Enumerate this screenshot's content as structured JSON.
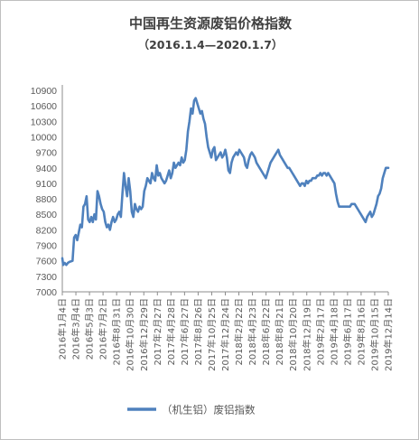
{
  "chart_data": {
    "type": "line",
    "title": "中国再生资源废铝价格指数",
    "subtitle": "（2016.1.4—2020.1.7）",
    "ylim": [
      7000,
      10900
    ],
    "ytick_step": 300,
    "yticks": [
      "7000",
      "7300",
      "7600",
      "7900",
      "8200",
      "8500",
      "8800",
      "9100",
      "9400",
      "9700",
      "10000",
      "10300",
      "10600",
      "10900"
    ],
    "x_tick_labels": [
      "2016年1月4日",
      "2016年3月4日",
      "2016年5月3日",
      "2016年7月2日",
      "2016年8月31日",
      "2016年10月30日",
      "2016年12月29日",
      "2017年2月27日",
      "2017年4月28日",
      "2017年6月27日",
      "2017年8月26日",
      "2017年10月25日",
      "2017年12月24日",
      "2018年2月22日",
      "2018年4月23日",
      "2018年6月22日",
      "2018年8月21日",
      "2018年10月20日",
      "2018年12月19日",
      "2019年2月17日",
      "2019年4月18日",
      "2019年6月17日",
      "2019年8月16日",
      "2019年10月15日",
      "2019年12月14日"
    ],
    "legend_position": "bottom",
    "grid": false,
    "colors": {
      "series": "#4f81bd",
      "axis": "#8c8c8c",
      "text": "#595959"
    },
    "series": [
      {
        "name": "（机生铝）废铝指数",
        "points": [
          [
            "2016-01-04",
            7650
          ],
          [
            "2016-01-08",
            7520
          ],
          [
            "2016-01-15",
            7560
          ],
          [
            "2016-01-22",
            7520
          ],
          [
            "2016-01-29",
            7560
          ],
          [
            "2016-02-05",
            7580
          ],
          [
            "2016-02-19",
            7600
          ],
          [
            "2016-02-26",
            8050
          ],
          [
            "2016-03-04",
            8100
          ],
          [
            "2016-03-11",
            8000
          ],
          [
            "2016-03-18",
            8150
          ],
          [
            "2016-03-25",
            8300
          ],
          [
            "2016-04-01",
            8250
          ],
          [
            "2016-04-08",
            8650
          ],
          [
            "2016-04-15",
            8700
          ],
          [
            "2016-04-22",
            8850
          ],
          [
            "2016-04-29",
            8400
          ],
          [
            "2016-05-06",
            8350
          ],
          [
            "2016-05-13",
            8450
          ],
          [
            "2016-05-20",
            8350
          ],
          [
            "2016-05-27",
            8500
          ],
          [
            "2016-06-03",
            8400
          ],
          [
            "2016-06-10",
            8950
          ],
          [
            "2016-06-17",
            8850
          ],
          [
            "2016-06-24",
            8700
          ],
          [
            "2016-07-01",
            8600
          ],
          [
            "2016-07-08",
            8550
          ],
          [
            "2016-07-15",
            8350
          ],
          [
            "2016-07-22",
            8250
          ],
          [
            "2016-07-29",
            8300
          ],
          [
            "2016-08-05",
            8200
          ],
          [
            "2016-08-12",
            8350
          ],
          [
            "2016-08-19",
            8450
          ],
          [
            "2016-08-26",
            8350
          ],
          [
            "2016-09-02",
            8400
          ],
          [
            "2016-09-09",
            8500
          ],
          [
            "2016-09-16",
            8550
          ],
          [
            "2016-09-23",
            8450
          ],
          [
            "2016-09-30",
            8900
          ],
          [
            "2016-10-07",
            9300
          ],
          [
            "2016-10-14",
            9050
          ],
          [
            "2016-10-21",
            8850
          ],
          [
            "2016-10-28",
            9200
          ],
          [
            "2016-11-04",
            8950
          ],
          [
            "2016-11-11",
            8550
          ],
          [
            "2016-11-18",
            8450
          ],
          [
            "2016-11-25",
            8700
          ],
          [
            "2016-12-02",
            8600
          ],
          [
            "2016-12-09",
            8550
          ],
          [
            "2016-12-16",
            8650
          ],
          [
            "2016-12-23",
            8600
          ],
          [
            "2016-12-30",
            8650
          ],
          [
            "2017-01-06",
            8950
          ],
          [
            "2017-01-13",
            9050
          ],
          [
            "2017-01-20",
            9200
          ],
          [
            "2017-01-27",
            9150
          ],
          [
            "2017-02-03",
            9100
          ],
          [
            "2017-02-10",
            9300
          ],
          [
            "2017-02-17",
            9200
          ],
          [
            "2017-02-24",
            9150
          ],
          [
            "2017-03-03",
            9450
          ],
          [
            "2017-03-10",
            9250
          ],
          [
            "2017-03-17",
            9300
          ],
          [
            "2017-03-24",
            9200
          ],
          [
            "2017-03-31",
            9150
          ],
          [
            "2017-04-07",
            9100
          ],
          [
            "2017-04-14",
            9150
          ],
          [
            "2017-04-21",
            9250
          ],
          [
            "2017-04-28",
            9350
          ],
          [
            "2017-05-05",
            9200
          ],
          [
            "2017-05-12",
            9300
          ],
          [
            "2017-05-19",
            9500
          ],
          [
            "2017-05-26",
            9400
          ],
          [
            "2017-06-02",
            9450
          ],
          [
            "2017-06-09",
            9500
          ],
          [
            "2017-06-16",
            9450
          ],
          [
            "2017-06-23",
            9600
          ],
          [
            "2017-06-30",
            9500
          ],
          [
            "2017-07-07",
            9550
          ],
          [
            "2017-07-14",
            9750
          ],
          [
            "2017-07-21",
            10100
          ],
          [
            "2017-07-28",
            10300
          ],
          [
            "2017-08-04",
            10550
          ],
          [
            "2017-08-11",
            10450
          ],
          [
            "2017-08-18",
            10700
          ],
          [
            "2017-08-25",
            10750
          ],
          [
            "2017-09-01",
            10650
          ],
          [
            "2017-09-08",
            10550
          ],
          [
            "2017-09-15",
            10450
          ],
          [
            "2017-09-22",
            10500
          ],
          [
            "2017-09-29",
            10350
          ],
          [
            "2017-10-06",
            10250
          ],
          [
            "2017-10-13",
            10000
          ],
          [
            "2017-10-20",
            9800
          ],
          [
            "2017-10-27",
            9700
          ],
          [
            "2017-11-03",
            9600
          ],
          [
            "2017-11-10",
            9750
          ],
          [
            "2017-11-17",
            9800
          ],
          [
            "2017-11-24",
            9550
          ],
          [
            "2017-12-01",
            9600
          ],
          [
            "2017-12-08",
            9650
          ],
          [
            "2017-12-15",
            9700
          ],
          [
            "2017-12-22",
            9600
          ],
          [
            "2017-12-29",
            9650
          ],
          [
            "2018-01-05",
            9750
          ],
          [
            "2018-01-12",
            9600
          ],
          [
            "2018-01-19",
            9350
          ],
          [
            "2018-01-26",
            9300
          ],
          [
            "2018-02-02",
            9500
          ],
          [
            "2018-02-09",
            9600
          ],
          [
            "2018-02-16",
            9650
          ],
          [
            "2018-02-23",
            9700
          ],
          [
            "2018-03-02",
            9650
          ],
          [
            "2018-03-09",
            9750
          ],
          [
            "2018-03-16",
            9700
          ],
          [
            "2018-03-23",
            9650
          ],
          [
            "2018-03-30",
            9600
          ],
          [
            "2018-04-06",
            9450
          ],
          [
            "2018-04-13",
            9400
          ],
          [
            "2018-04-20",
            9550
          ],
          [
            "2018-04-27",
            9650
          ],
          [
            "2018-05-04",
            9700
          ],
          [
            "2018-05-11",
            9650
          ],
          [
            "2018-05-18",
            9600
          ],
          [
            "2018-05-25",
            9500
          ],
          [
            "2018-06-01",
            9450
          ],
          [
            "2018-06-08",
            9400
          ],
          [
            "2018-06-15",
            9350
          ],
          [
            "2018-06-22",
            9300
          ],
          [
            "2018-06-29",
            9250
          ],
          [
            "2018-07-06",
            9200
          ],
          [
            "2018-07-13",
            9300
          ],
          [
            "2018-07-20",
            9400
          ],
          [
            "2018-07-27",
            9500
          ],
          [
            "2018-08-03",
            9550
          ],
          [
            "2018-08-10",
            9600
          ],
          [
            "2018-08-17",
            9650
          ],
          [
            "2018-08-24",
            9700
          ],
          [
            "2018-08-31",
            9750
          ],
          [
            "2018-09-07",
            9650
          ],
          [
            "2018-09-14",
            9600
          ],
          [
            "2018-09-21",
            9550
          ],
          [
            "2018-09-28",
            9500
          ],
          [
            "2018-10-05",
            9450
          ],
          [
            "2018-10-12",
            9400
          ],
          [
            "2018-10-19",
            9400
          ],
          [
            "2018-10-26",
            9350
          ],
          [
            "2018-11-02",
            9300
          ],
          [
            "2018-11-09",
            9250
          ],
          [
            "2018-11-16",
            9200
          ],
          [
            "2018-11-23",
            9150
          ],
          [
            "2018-11-30",
            9100
          ],
          [
            "2018-12-07",
            9050
          ],
          [
            "2018-12-14",
            9100
          ],
          [
            "2018-12-21",
            9100
          ],
          [
            "2018-12-28",
            9050
          ],
          [
            "2019-01-04",
            9150
          ],
          [
            "2019-01-11",
            9100
          ],
          [
            "2019-01-18",
            9150
          ],
          [
            "2019-01-25",
            9150
          ],
          [
            "2019-02-01",
            9200
          ],
          [
            "2019-02-15",
            9200
          ],
          [
            "2019-02-22",
            9250
          ],
          [
            "2019-03-01",
            9250
          ],
          [
            "2019-03-08",
            9300
          ],
          [
            "2019-03-15",
            9250
          ],
          [
            "2019-03-22",
            9300
          ],
          [
            "2019-03-29",
            9300
          ],
          [
            "2019-04-05",
            9250
          ],
          [
            "2019-04-12",
            9300
          ],
          [
            "2019-04-19",
            9250
          ],
          [
            "2019-04-26",
            9200
          ],
          [
            "2019-05-03",
            9150
          ],
          [
            "2019-05-10",
            9100
          ],
          [
            "2019-05-17",
            8900
          ],
          [
            "2019-05-24",
            8750
          ],
          [
            "2019-05-31",
            8650
          ],
          [
            "2019-06-07",
            8650
          ],
          [
            "2019-06-14",
            8650
          ],
          [
            "2019-06-21",
            8650
          ],
          [
            "2019-06-28",
            8650
          ],
          [
            "2019-07-05",
            8650
          ],
          [
            "2019-07-12",
            8650
          ],
          [
            "2019-07-19",
            8650
          ],
          [
            "2019-07-26",
            8700
          ],
          [
            "2019-08-02",
            8700
          ],
          [
            "2019-08-09",
            8700
          ],
          [
            "2019-08-16",
            8650
          ],
          [
            "2019-08-23",
            8600
          ],
          [
            "2019-08-30",
            8550
          ],
          [
            "2019-09-06",
            8500
          ],
          [
            "2019-09-13",
            8450
          ],
          [
            "2019-09-20",
            8400
          ],
          [
            "2019-09-27",
            8350
          ],
          [
            "2019-10-04",
            8450
          ],
          [
            "2019-10-11",
            8500
          ],
          [
            "2019-10-18",
            8550
          ],
          [
            "2019-10-25",
            8450
          ],
          [
            "2019-11-01",
            8500
          ],
          [
            "2019-11-08",
            8600
          ],
          [
            "2019-11-15",
            8700
          ],
          [
            "2019-11-22",
            8850
          ],
          [
            "2019-11-29",
            8900
          ],
          [
            "2019-12-06",
            9000
          ],
          [
            "2019-12-13",
            9200
          ],
          [
            "2019-12-20",
            9300
          ],
          [
            "2019-12-27",
            9400
          ],
          [
            "2020-01-07",
            9400
          ]
        ]
      }
    ]
  }
}
